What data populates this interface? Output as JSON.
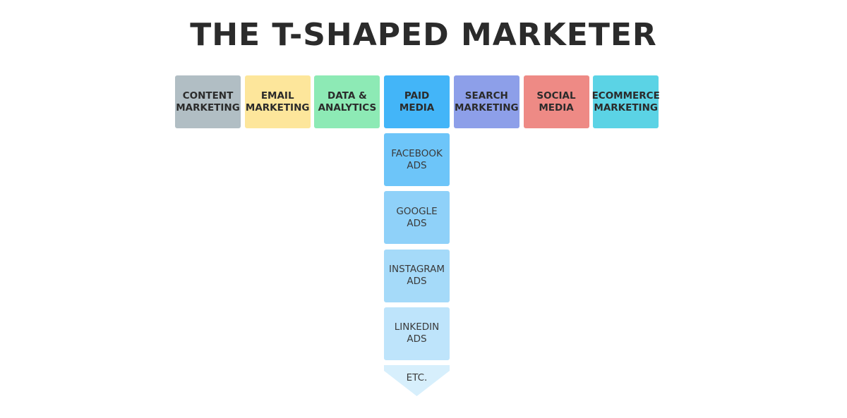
{
  "title": "THE T-SHAPED MARKETER",
  "top_row": [
    {
      "lines": [
        "CONTENT",
        "MARKETING"
      ]
    },
    {
      "lines": [
        "EMAIL",
        "MARKETING"
      ]
    },
    {
      "lines": [
        "DATA &",
        "ANALYTICS"
      ]
    },
    {
      "lines": [
        "PAID",
        "MEDIA"
      ]
    },
    {
      "lines": [
        "SEARCH",
        "MARKETING"
      ]
    },
    {
      "lines": [
        "SOCIAL",
        "MEDIA"
      ]
    },
    {
      "lines": [
        "ECOMMERCE",
        "MARKETING"
      ]
    }
  ],
  "column": [
    {
      "lines": [
        "FACEBOOK",
        "ADS"
      ]
    },
    {
      "lines": [
        "GOOGLE",
        "ADS"
      ]
    },
    {
      "lines": [
        "INSTAGRAM",
        "ADS"
      ]
    },
    {
      "lines": [
        "LINKEDIN",
        "ADS"
      ]
    }
  ],
  "arrow_label": "ETC."
}
